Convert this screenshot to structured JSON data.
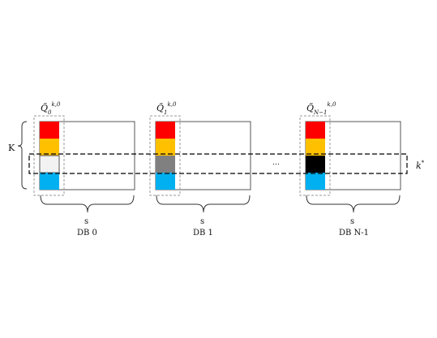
{
  "colors": {
    "red": "#ff0000",
    "orange": "#ffc000",
    "white_cell": "#f2f2f2",
    "gray_cell": "#808080",
    "black_cell": "#000000",
    "blue": "#00b0f0",
    "outline": "#555555",
    "dashed_selection": "#999999",
    "dashed_row": "#000000"
  },
  "labels": {
    "k_row": "K",
    "k_star_base": "k",
    "k_star_sup": "*",
    "ellipsis": "…"
  },
  "databases": [
    {
      "q_base": "Q̃",
      "q_sub": "0",
      "q_sup": "k,0",
      "s_label": "s",
      "db_label": "DB 0",
      "row_color_key": "white_cell"
    },
    {
      "q_base": "Q̃",
      "q_sub": "1",
      "q_sup": "k,0",
      "s_label": "s",
      "db_label": "DB 1",
      "row_color_key": "gray_cell"
    },
    {
      "q_base": "Q̃",
      "q_sub": "N−1",
      "q_sup": "k,0",
      "s_label": "s",
      "db_label": "DB N-1",
      "row_color_key": "black_cell"
    }
  ]
}
